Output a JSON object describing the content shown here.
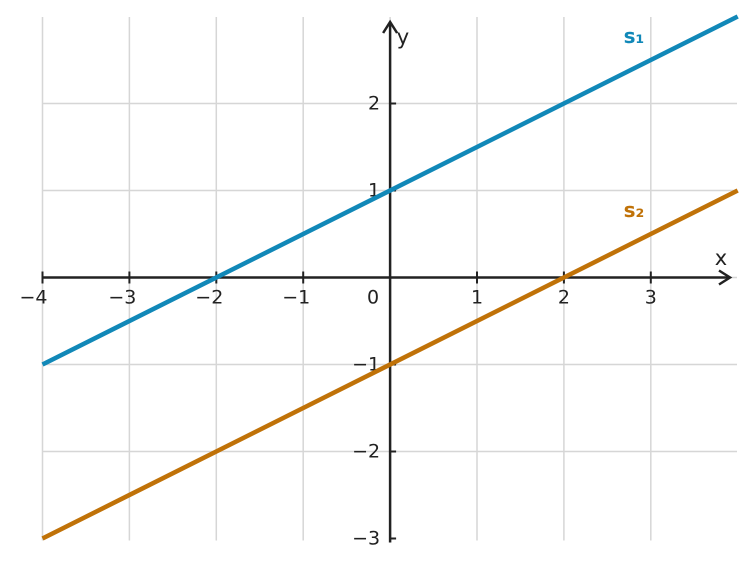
{
  "chart_data": {
    "type": "line",
    "xlabel": "x",
    "ylabel": "y",
    "xlim": [
      -4,
      4
    ],
    "ylim": [
      -3,
      3
    ],
    "grid": true,
    "x_ticks": [
      {
        "value": -4,
        "label": "−4"
      },
      {
        "value": -3,
        "label": "−3"
      },
      {
        "value": -2,
        "label": "−2"
      },
      {
        "value": -1,
        "label": "−1"
      },
      {
        "value": 0,
        "label": "0"
      },
      {
        "value": 1,
        "label": "1"
      },
      {
        "value": 2,
        "label": "2"
      },
      {
        "value": 3,
        "label": "3"
      }
    ],
    "y_ticks": [
      {
        "value": 2,
        "label": "2"
      },
      {
        "value": 1,
        "label": "1"
      },
      {
        "value": -1,
        "label": "−1"
      },
      {
        "value": -2,
        "label": "−2"
      },
      {
        "value": -3,
        "label": "−3"
      }
    ],
    "series": [
      {
        "name": "s₁",
        "color": "#1188b8",
        "x": [
          -4,
          4
        ],
        "y": [
          -1,
          3
        ]
      },
      {
        "name": "s₂",
        "color": "#c07208",
        "x": [
          -4,
          4
        ],
        "y": [
          -3,
          1
        ]
      }
    ]
  }
}
